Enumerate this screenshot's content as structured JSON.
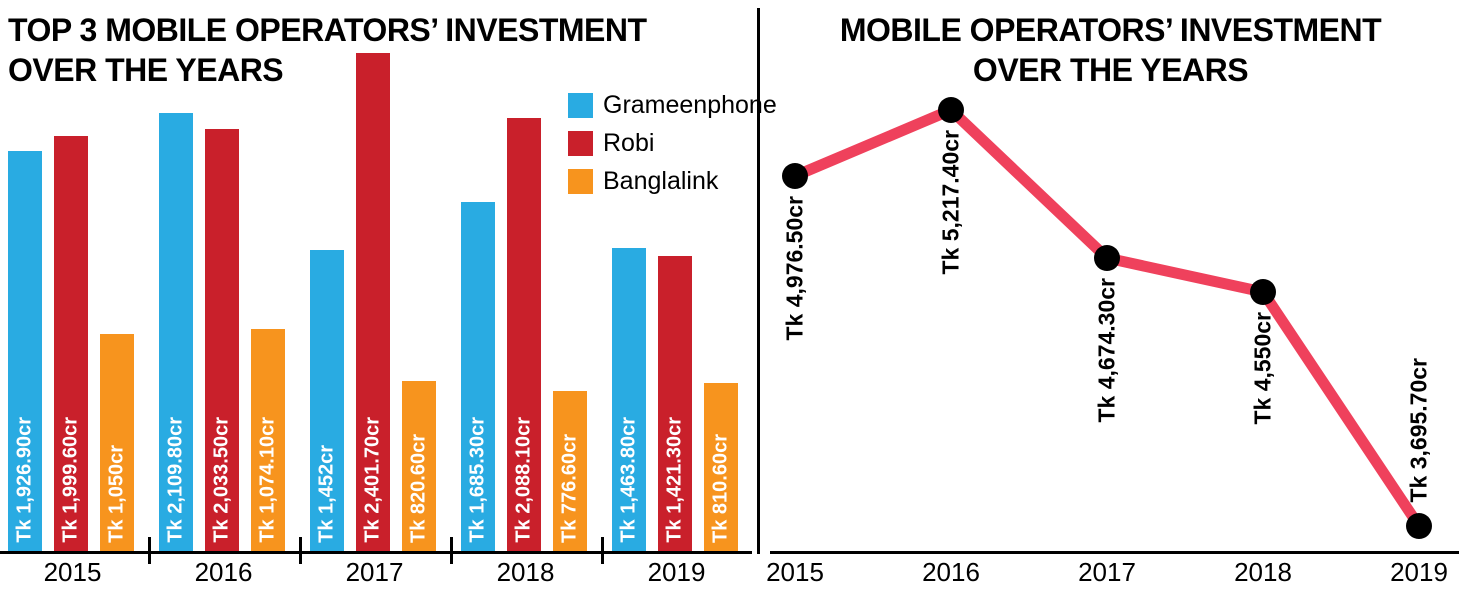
{
  "left_panel": {
    "title_line1": "TOP 3 MOBILE OPERATORS’ INVESTMENT",
    "title_line2": "OVER THE YEARS"
  },
  "right_panel": {
    "title_line1": "MOBILE OPERATORS’ INVESTMENT",
    "title_line2": "OVER THE YEARS"
  },
  "chart_data": [
    {
      "type": "bar",
      "title": "TOP 3 MOBILE OPERATORS’ INVESTMENT OVER THE YEARS",
      "categories": [
        "2015",
        "2016",
        "2017",
        "2018",
        "2019"
      ],
      "series": [
        {
          "name": "Grameenphone",
          "color": "#29ABE2",
          "values": [
            1926.9,
            2109.8,
            1452,
            1685.3,
            1463.8
          ],
          "labels": [
            "Tk 1,926.90cr",
            "Tk 2,109.80cr",
            "Tk 1,452cr",
            "Tk 1,685.30cr",
            "Tk 1,463.80cr"
          ]
        },
        {
          "name": "Robi",
          "color": "#C9202B",
          "values": [
            1999.6,
            2033.5,
            2401.7,
            2088.1,
            1421.3
          ],
          "labels": [
            "Tk 1,999.60cr",
            "Tk 2,033.50cr",
            "Tk 2,401.70cr",
            "Tk 2,088.10cr",
            "Tk 1,421.30cr"
          ]
        },
        {
          "name": "Banglalink",
          "color": "#F7941E",
          "values": [
            1050,
            1074.1,
            820.6,
            776.6,
            810.6
          ],
          "labels": [
            "Tk 1,050cr",
            "Tk 1,074.10cr",
            "Tk 820.60cr",
            "Tk 776.60cr",
            "Tk 810.60cr"
          ]
        }
      ],
      "ylim": [
        0,
        2655
      ],
      "grid": false,
      "legend_position": "top-right"
    },
    {
      "type": "line",
      "title": "MOBILE OPERATORS’ INVESTMENT OVER THE YEARS",
      "categories": [
        "2015",
        "2016",
        "2017",
        "2018",
        "2019"
      ],
      "values": [
        4976.5,
        5217.4,
        4674.3,
        4550,
        3695.7
      ],
      "labels": [
        "Tk 4,976.50cr",
        "Tk 5,217.40cr",
        "Tk 4,674.30cr",
        "Tk 4,550cr",
        "Tk 3,695.70cr"
      ],
      "label_positions": [
        "below",
        "below",
        "below",
        "below",
        "above"
      ],
      "line_color": "#EF415C",
      "marker_color": "#000000",
      "ylim": [
        3600,
        5400
      ],
      "grid": false,
      "legend_position": "none"
    }
  ]
}
